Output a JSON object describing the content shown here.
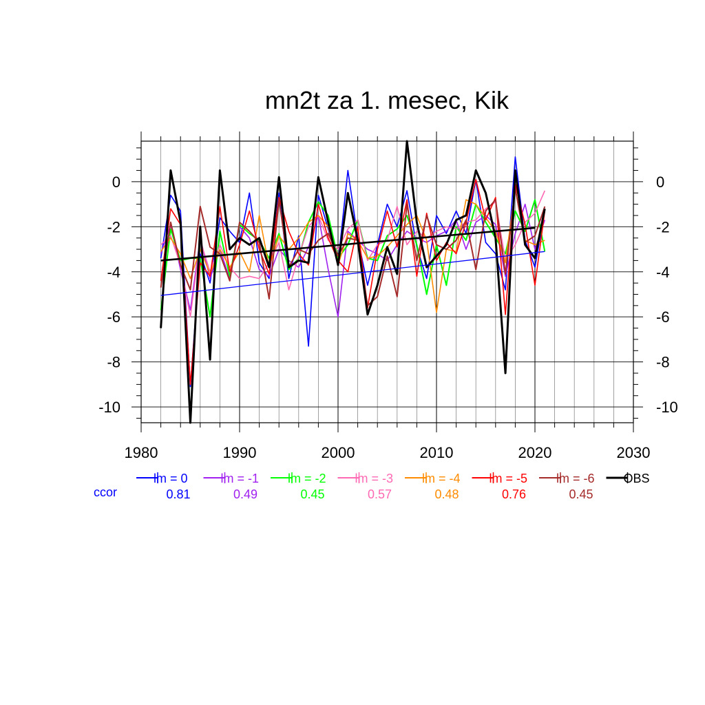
{
  "chart_data": {
    "type": "line",
    "title": "mn2t za 1. mesec, Kik",
    "xlabel": "",
    "ylabel": "",
    "xlim": [
      1980,
      2030
    ],
    "ylim": [
      -10.7,
      1.8
    ],
    "x_ticks": [
      1980,
      1990,
      2000,
      2010,
      2020,
      2030
    ],
    "y_ticks": [
      0,
      -2,
      -4,
      -6,
      -8,
      -10
    ],
    "grid": true,
    "years": [
      1982,
      1983,
      1984,
      1985,
      1986,
      1987,
      1988,
      1989,
      1990,
      1991,
      1992,
      1993,
      1994,
      1995,
      1996,
      1997,
      1998,
      1999,
      2000,
      2001,
      2002,
      2003,
      2004,
      2005,
      2006,
      2007,
      2008,
      2009,
      2010,
      2011,
      2012,
      2013,
      2014,
      2015,
      2016,
      2017,
      2018,
      2019,
      2020,
      2021
    ],
    "series": [
      {
        "name": "lm = 0",
        "color": "#0000ff",
        "width": 1.6,
        "values": [
          -3.4,
          -0.6,
          -1.3,
          -9.1,
          -3.2,
          -4.5,
          -1.6,
          -2.2,
          -2.7,
          -0.5,
          -3.6,
          -4.3,
          -0.5,
          -4.3,
          -2.4,
          -7.3,
          -0.6,
          -2.1,
          -3.6,
          0.5,
          -2.5,
          -4.6,
          -2.8,
          -1.0,
          -2.0,
          -0.4,
          -2.9,
          -4.3,
          -1.5,
          -2.3,
          -1.3,
          -2.3,
          0.1,
          -2.7,
          -3.2,
          -4.8,
          1.1,
          -2.6,
          -3.8,
          -1.3
        ]
      },
      {
        "name": "lm = -1",
        "color": "#a020f0",
        "width": 1.6,
        "values": [
          -3.2,
          -1.9,
          -3.9,
          -5.7,
          -2.5,
          -4.3,
          -3.0,
          -4.3,
          -2.0,
          -2.5,
          -3.9,
          -4.2,
          -3.0,
          -3.5,
          -3.8,
          -2.9,
          -1.5,
          -3.9,
          -6.0,
          -2.2,
          -2.6,
          -3.0,
          -3.2,
          -3.5,
          -2.8,
          -2.2,
          -2.5,
          -2.7,
          -2.4,
          -2.2,
          -1.7,
          -3.0,
          -1.8,
          -1.5,
          -1.9,
          -4.2,
          -2.3,
          -1.0,
          -3.0,
          -1.7
        ]
      },
      {
        "name": "lm = -2",
        "color": "#00ff00",
        "width": 2.0,
        "values": [
          -5.7,
          -2.1,
          -3.5,
          -3.4,
          -3.4,
          -6.0,
          -2.2,
          -4.2,
          -1.9,
          -2.3,
          -2.6,
          -3.4,
          -2.3,
          -3.9,
          -3.4,
          -1.8,
          -0.9,
          -1.5,
          -3.4,
          -2.8,
          -1.7,
          -3.4,
          -3.5,
          -2.4,
          -2.1,
          -1.5,
          -2.8,
          -5.0,
          -2.8,
          -4.6,
          -2.0,
          -2.6,
          -1.0,
          -1.8,
          -2.5,
          -3.2,
          -1.3,
          -2.2,
          -0.8,
          -3.1
        ]
      },
      {
        "name": "lm = -3",
        "color": "#ff69b4",
        "width": 1.6,
        "values": [
          -2.8,
          -2.4,
          -3.7,
          -6.0,
          -2.6,
          -4.0,
          -2.8,
          -3.8,
          -4.3,
          -4.2,
          -4.3,
          -3.6,
          -2.7,
          -4.8,
          -3.3,
          -2.0,
          -1.5,
          -2.6,
          -3.0,
          -2.1,
          -1.7,
          -3.5,
          -2.8,
          -2.6,
          -1.1,
          -2.8,
          -2.2,
          -2.5,
          -2.2,
          -2.0,
          -2.1,
          -1.8,
          -1.7,
          -1.2,
          -0.9,
          -3.5,
          -2.8,
          -1.8,
          -1.4,
          -0.4
        ]
      },
      {
        "name": "lm = -4",
        "color": "#ff8c00",
        "width": 1.6,
        "values": [
          -3.1,
          -2.5,
          -3.2,
          -4.3,
          -3.0,
          -4.1,
          -3.0,
          -3.8,
          -3.1,
          -4.0,
          -1.5,
          -3.8,
          -2.4,
          -3.0,
          -2.5,
          -1.8,
          -1.5,
          -2.0,
          -3.7,
          -2.3,
          -2.6,
          -3.4,
          -3.3,
          -2.9,
          -2.4,
          -1.9,
          -1.5,
          -2.6,
          -5.8,
          -3.0,
          -3.1,
          -0.8,
          -1.0,
          -1.6,
          -2.2,
          -3.6,
          -0.3,
          -2.6,
          -2.8,
          -2.6
        ]
      },
      {
        "name": "lm = -5",
        "color": "#ff0000",
        "width": 1.6,
        "values": [
          -4.4,
          -1.2,
          -1.9,
          -9.0,
          -3.6,
          -4.2,
          -1.1,
          -4.0,
          -2.8,
          -1.3,
          -3.0,
          -4.1,
          -0.7,
          -2.2,
          -3.2,
          -3.7,
          -1.0,
          -2.5,
          -3.5,
          -4.0,
          -2.0,
          -5.6,
          -3.0,
          -1.3,
          -2.9,
          -0.8,
          -4.2,
          -1.4,
          -3.5,
          -2.7,
          -3.2,
          -1.8,
          0.1,
          -1.7,
          -0.7,
          -5.9,
          -0.1,
          -1.9,
          -4.6,
          -1.3
        ]
      },
      {
        "name": "lm = -6",
        "color": "#a52a2a",
        "width": 2.0,
        "values": [
          -4.7,
          -1.8,
          -3.7,
          -4.8,
          -1.1,
          -2.9,
          -3.2,
          -4.4,
          -1.8,
          -2.2,
          -2.7,
          -5.2,
          -0.8,
          -3.8,
          -3.0,
          -3.2,
          -2.6,
          -2.3,
          -3.3,
          -2.5,
          -2.6,
          -5.5,
          -5.1,
          -3.3,
          -5.1,
          -1.0,
          -3.5,
          -1.5,
          -2.8,
          -3.0,
          -2.6,
          -1.7,
          -3.9,
          -1.3,
          -0.8,
          -4.1,
          -0.3,
          -2.7,
          -2.4,
          -1.1
        ]
      },
      {
        "name": "OBS",
        "color": "#000000",
        "width": 3.0,
        "values": [
          -6.5,
          0.5,
          -1.8,
          -10.7,
          -2.0,
          -7.9,
          0.5,
          -3.0,
          -2.5,
          -2.8,
          -2.5,
          -3.8,
          0.2,
          -3.8,
          -3.5,
          -3.6,
          0.2,
          -1.8,
          -3.7,
          -0.5,
          -2.6,
          -5.9,
          -4.6,
          -2.9,
          -4.1,
          1.8,
          -1.8,
          -3.8,
          -3.3,
          -2.8,
          -1.7,
          -1.5,
          0.5,
          -0.5,
          -2.5,
          -8.5,
          0.5,
          -2.8,
          -3.4,
          -1.2
        ]
      }
    ],
    "trends": [
      {
        "name": "lm = 0",
        "color": "#0000ff",
        "width": 1.3,
        "x": [
          1982,
          2021
        ],
        "y": [
          -5.05,
          -3.1
        ]
      },
      {
        "name": "OBS",
        "color": "#000000",
        "width": 2.6,
        "x": [
          1982,
          2020
        ],
        "y": [
          -3.5,
          -2.05
        ]
      }
    ],
    "legend": {
      "position": "bottom",
      "header": "ccor",
      "header_color": "#0000ff",
      "entries": [
        {
          "label": "lm = 0",
          "ccor": "0.81",
          "color": "#0000ff"
        },
        {
          "label": "lm = -1",
          "ccor": "0.49",
          "color": "#a020f0"
        },
        {
          "label": "lm = -2",
          "ccor": "0.45",
          "color": "#00ff00"
        },
        {
          "label": "lm = -3",
          "ccor": "0.57",
          "color": "#ff69b4"
        },
        {
          "label": "lm = -4",
          "ccor": "0.48",
          "color": "#ff8c00"
        },
        {
          "label": "lm = -5",
          "ccor": "0.76",
          "color": "#ff0000"
        },
        {
          "label": "lm = -6",
          "ccor": "0.45",
          "color": "#a52a2a"
        },
        {
          "label": "OBS",
          "ccor": "",
          "color": "#000000"
        }
      ]
    }
  }
}
